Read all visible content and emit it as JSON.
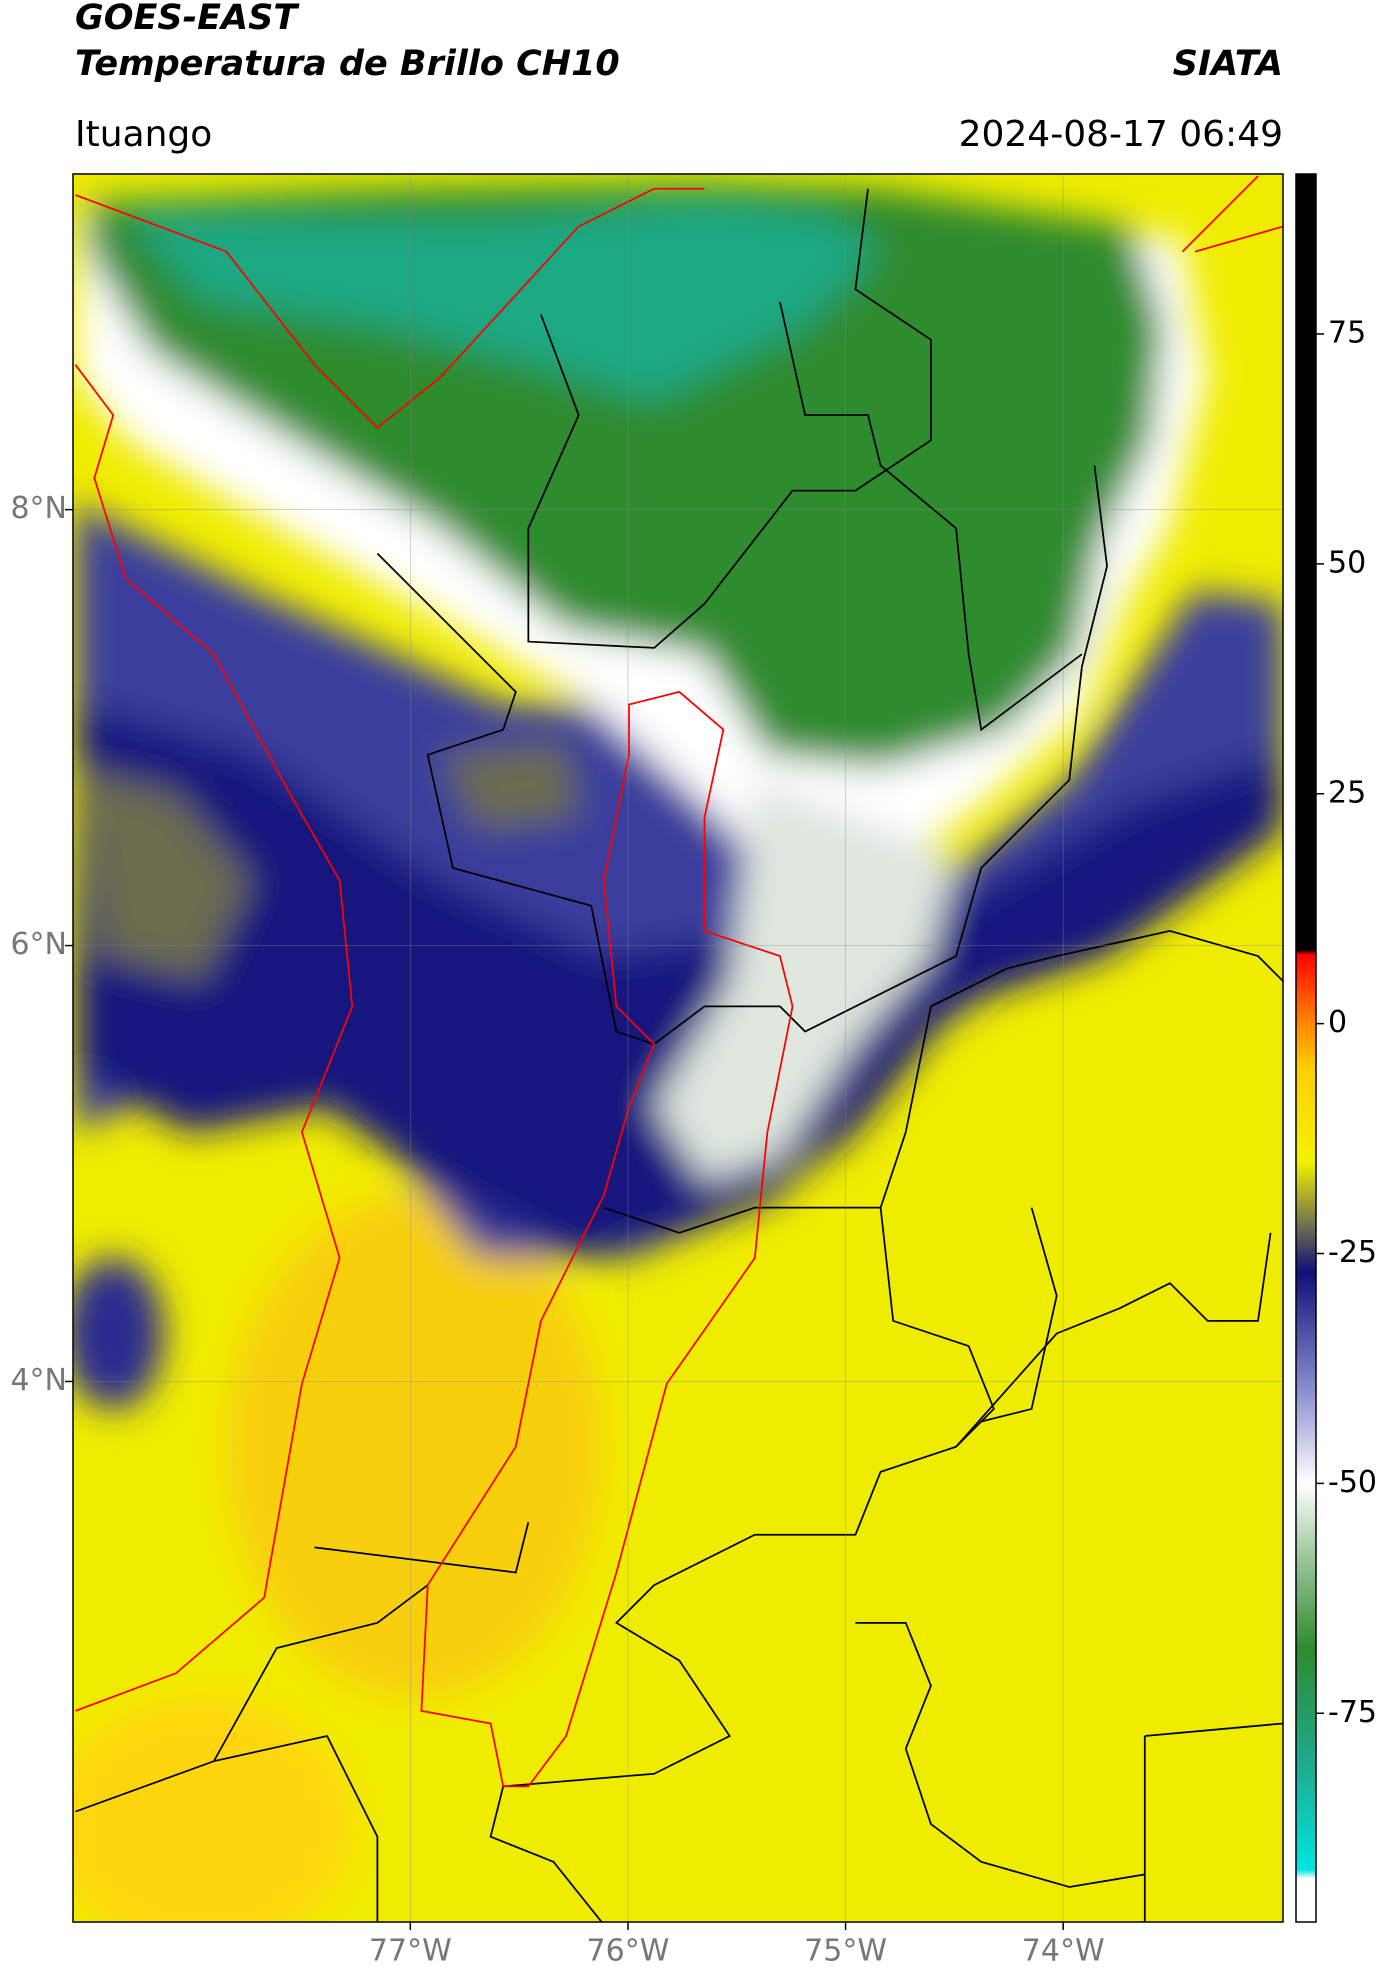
{
  "header": {
    "title": "GOES-EAST",
    "subtitle": "Temperatura de Brillo CH10",
    "source": "SIATA",
    "location": "Ituango",
    "datetime": "2024-08-17 06:49"
  },
  "map": {
    "lat_range": [
      1.52,
      9.54
    ],
    "lon_range": [
      -78.55,
      -72.99
    ],
    "lat_ticks": [
      {
        "value": 8,
        "label": "8°N"
      },
      {
        "value": 6,
        "label": "6°N"
      },
      {
        "value": 4,
        "label": "4°N"
      }
    ],
    "lon_ticks": [
      {
        "value": -77,
        "label": "77°W"
      },
      {
        "value": -76,
        "label": "76°W"
      },
      {
        "value": -75,
        "label": "75°W"
      },
      {
        "value": -74,
        "label": "74°W"
      }
    ]
  },
  "colorbar": {
    "range": [
      -97.7,
      92.4
    ],
    "ticks": [
      75,
      50,
      25,
      0,
      -25,
      -50,
      -75
    ],
    "stops": [
      {
        "value": -97.7,
        "color": "#ffffff"
      },
      {
        "value": -93,
        "color": "#ffffff"
      },
      {
        "value": -92,
        "color": "#00e5e0"
      },
      {
        "value": -80,
        "color": "#1fa88a"
      },
      {
        "value": -68,
        "color": "#2e8b2e"
      },
      {
        "value": -58,
        "color": "#9cc79c"
      },
      {
        "value": -50,
        "color": "#ffffff"
      },
      {
        "value": -40,
        "color": "#8c8fd0"
      },
      {
        "value": -27,
        "color": "#10107a"
      },
      {
        "value": -22,
        "color": "#6e6e50"
      },
      {
        "value": -15,
        "color": "#f2f200"
      },
      {
        "value": -5,
        "color": "#ffd000"
      },
      {
        "value": 0,
        "color": "#ff8800"
      },
      {
        "value": 7.5,
        "color": "#ff0000"
      },
      {
        "value": 8,
        "color": "#000000"
      },
      {
        "value": 92.4,
        "color": "#000000"
      }
    ]
  }
}
